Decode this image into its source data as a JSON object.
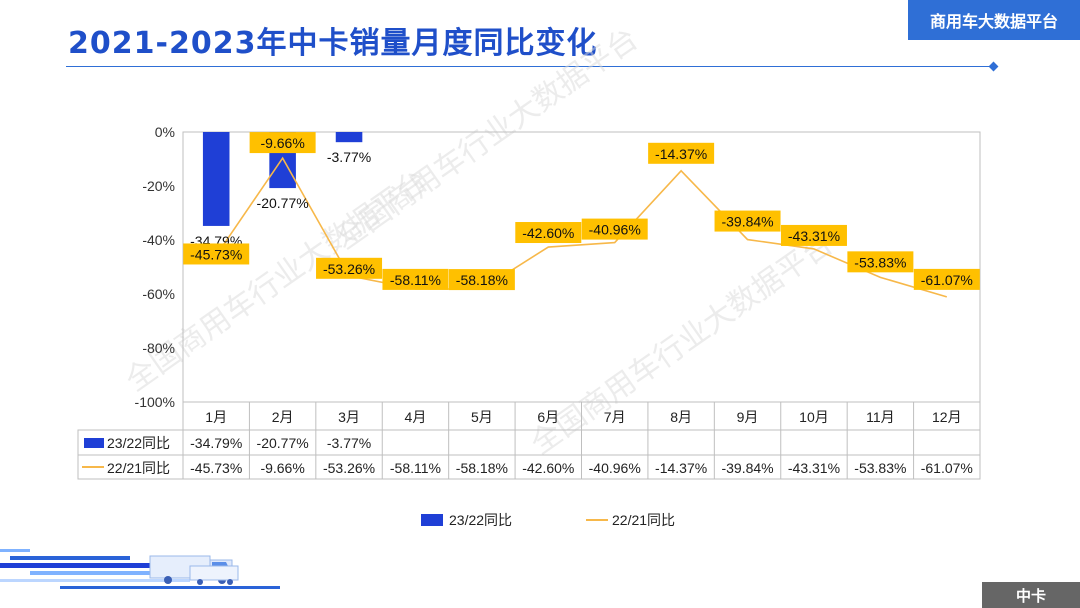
{
  "header": {
    "title": "2021-2023年中卡销量月度同比变化",
    "brand": "商用车大数据平台"
  },
  "footer": {
    "tag": "中卡"
  },
  "watermark": "全国商用车行业大数据平台",
  "colors": {
    "bar": "#1f3fd6",
    "line": "#f7b84a",
    "label_bg": "#ffc000",
    "accent": "#2f6fd6"
  },
  "chart_data": {
    "type": "bar",
    "title": "",
    "categories": [
      "1月",
      "2月",
      "3月",
      "4月",
      "5月",
      "6月",
      "7月",
      "8月",
      "9月",
      "10月",
      "11月",
      "12月"
    ],
    "yticks": [
      "0%",
      "-20%",
      "-40%",
      "-60%",
      "-80%",
      "-100%"
    ],
    "ylim": [
      -100,
      0
    ],
    "legend_position": "bottom",
    "series": [
      {
        "name": "23/22同比",
        "kind": "bar",
        "values": [
          -34.79,
          -20.77,
          -3.77,
          null,
          null,
          null,
          null,
          null,
          null,
          null,
          null,
          null
        ],
        "labels": [
          "-34.79%",
          "-20.77%",
          "-3.77%",
          "",
          "",
          "",
          "",
          "",
          "",
          "",
          "",
          ""
        ]
      },
      {
        "name": "22/21同比",
        "kind": "line",
        "values": [
          -45.73,
          -9.66,
          -53.26,
          -58.11,
          -58.18,
          -42.6,
          -40.96,
          -14.37,
          -39.84,
          -43.31,
          -53.83,
          -61.07
        ],
        "labels": [
          "-45.73%",
          "-9.66%",
          "-53.26%",
          "-58.11%",
          "-58.18%",
          "-42.60%",
          "-40.96%",
          "-14.37%",
          "-39.84%",
          "-43.31%",
          "-53.83%",
          "-61.07%"
        ]
      }
    ]
  }
}
